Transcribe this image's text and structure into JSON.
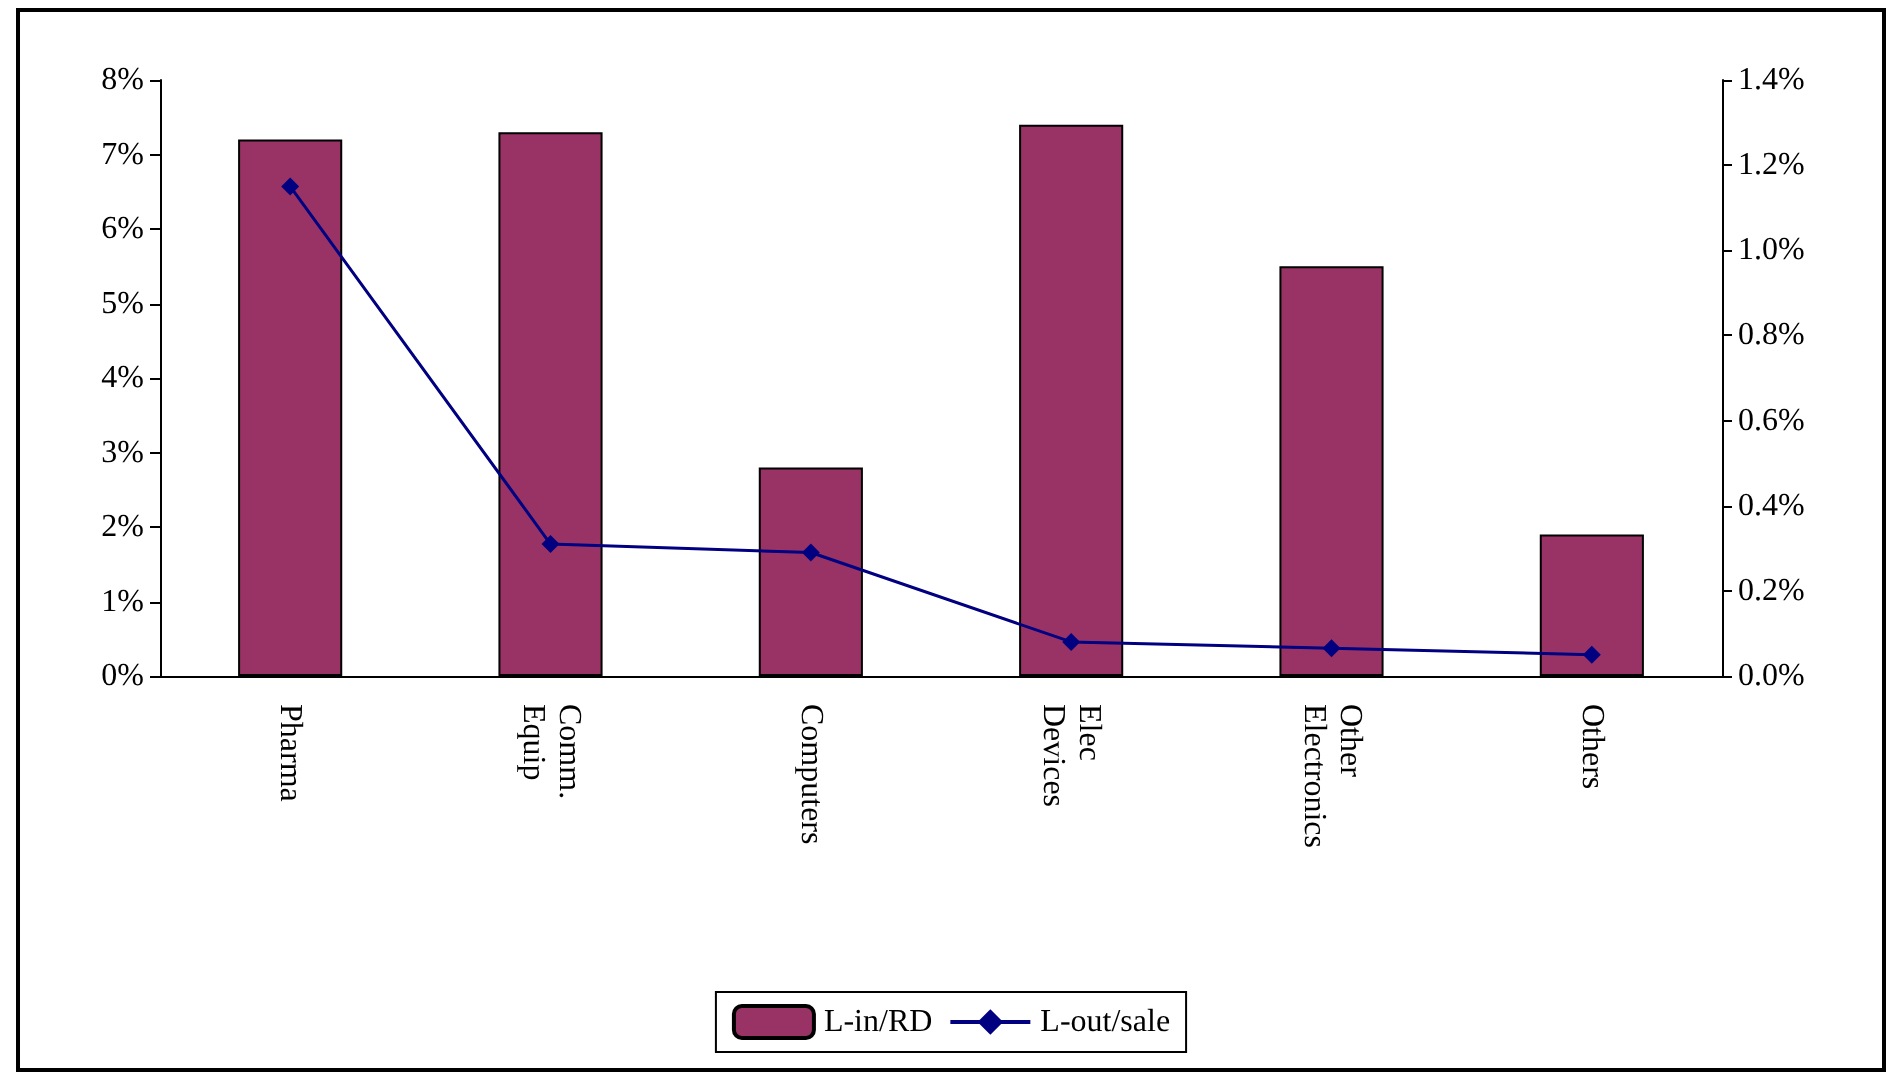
{
  "chart_data": {
    "type": "bar",
    "categories": [
      "Pharma",
      "Comm.\nEquip",
      "Computers",
      "Elec\nDevices",
      "Other\nElectronics",
      "Others"
    ],
    "series": [
      {
        "name": "L-in/RD",
        "color": "#993366",
        "values": [
          7.2,
          7.3,
          2.8,
          7.4,
          5.5,
          1.9
        ]
      },
      {
        "name": "L-out/sale",
        "type": "line",
        "axis": "y2",
        "color": "#000080",
        "marker": "diamond",
        "values": [
          1.15,
          0.31,
          0.29,
          0.08,
          0.065,
          0.05
        ]
      }
    ],
    "ylim": [
      0,
      8
    ],
    "yticks": [
      {
        "value": 0,
        "label": "0%"
      },
      {
        "value": 1,
        "label": "1%"
      },
      {
        "value": 2,
        "label": "2%"
      },
      {
        "value": 3,
        "label": "3%"
      },
      {
        "value": 4,
        "label": "4%"
      },
      {
        "value": 5,
        "label": "5%"
      },
      {
        "value": 6,
        "label": "6%"
      },
      {
        "value": 7,
        "label": "7%"
      },
      {
        "value": 8,
        "label": "8%"
      }
    ],
    "y2lim": [
      0,
      1.4
    ],
    "y2ticks": [
      {
        "value": 0,
        "label": "0.0%"
      },
      {
        "value": 0.2,
        "label": "0.2%"
      },
      {
        "value": 0.4,
        "label": "0.4%"
      },
      {
        "value": 0.6,
        "label": "0.6%"
      },
      {
        "value": 0.8,
        "label": "0.8%"
      },
      {
        "value": 1.0,
        "label": "1.0%"
      },
      {
        "value": 1.2,
        "label": "1.2%"
      },
      {
        "value": 1.4,
        "label": "1.4%"
      }
    ],
    "grid": false,
    "legend": "bottom"
  }
}
